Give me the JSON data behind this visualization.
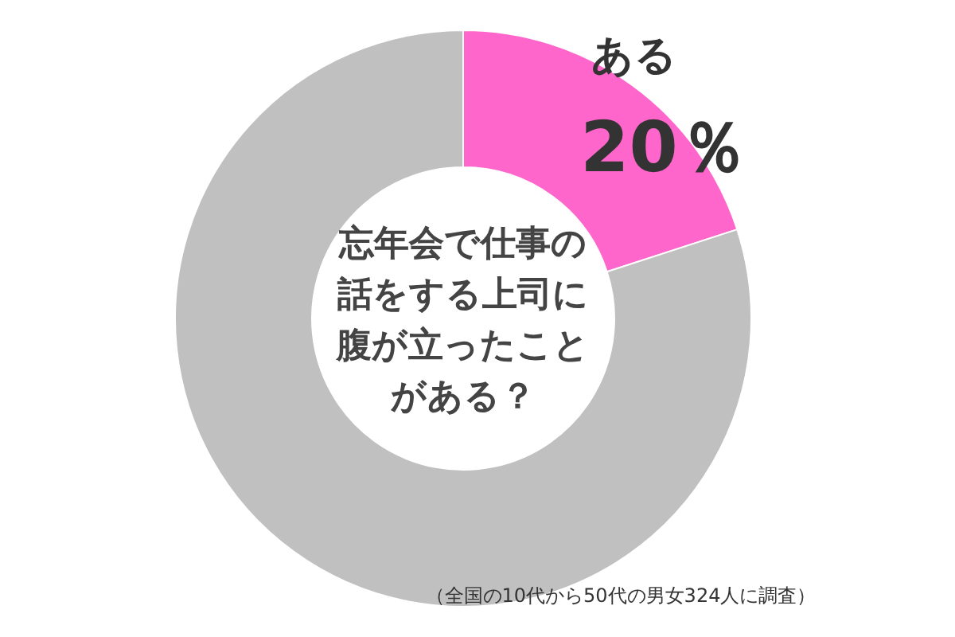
{
  "chart_data": {
    "type": "donut",
    "title": "忘年会で仕事の話をする上司に腹が立ったことがある？",
    "categories": [
      "ある",
      null
    ],
    "values": [
      20,
      80
    ],
    "colors": [
      "#ff66cc",
      "#c0c0c0"
    ],
    "value_labels": [
      "20％",
      null
    ],
    "annotations": [
      "（全国の10代から50代の男女324人に調査）"
    ]
  }
}
